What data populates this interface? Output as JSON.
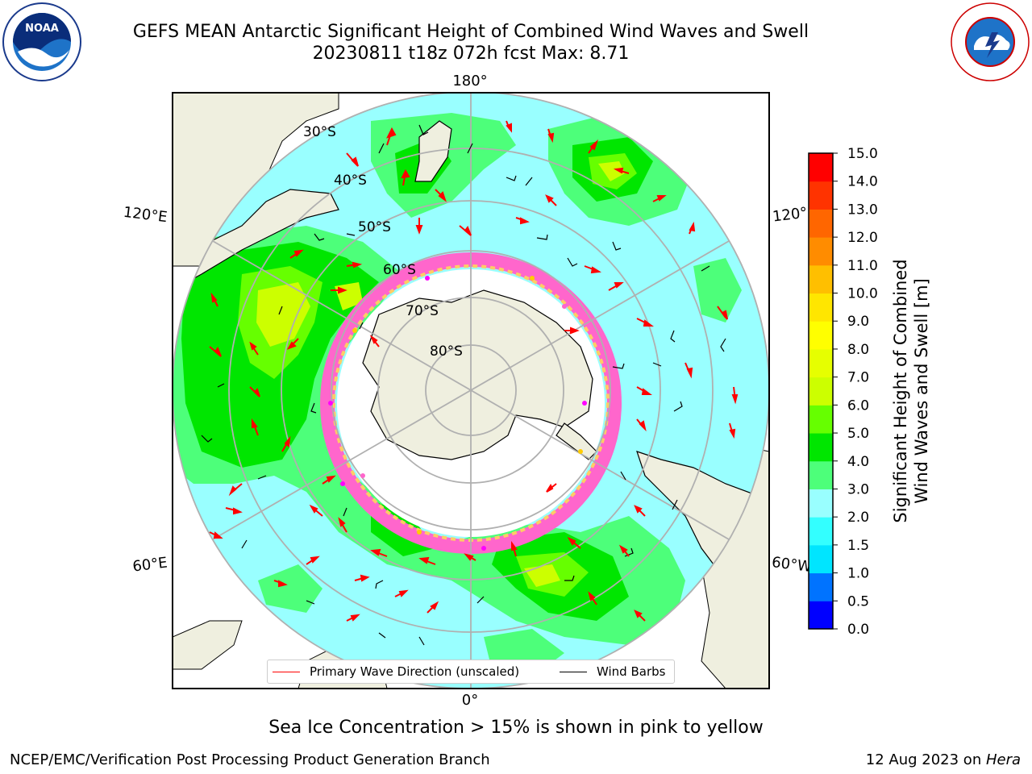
{
  "title": {
    "line1": "GEFS MEAN Antarctic Significant Height of Combined Wind Waves and Swell",
    "line2": "20230811 t18z 072h fcst   Max: 8.71"
  },
  "logos": {
    "left": "noaa-logo",
    "right": "nws-logo"
  },
  "map": {
    "projection": "south-polar-stereographic",
    "meridian_labels": [
      "180°",
      "120°E",
      "120°",
      "60°E",
      "60°W",
      "0°"
    ],
    "latitude_labels": [
      "30°S",
      "40°S",
      "50°S",
      "60°S",
      "70°S",
      "80°S"
    ],
    "colors": {
      "ocean_low": "#99ffff",
      "land": "#efefdf",
      "grid": "#b0b0b0"
    }
  },
  "legend": {
    "primary_wave": "Primary Wave Direction (unscaled)",
    "wind_barbs": "Wind Barbs",
    "primary_color": "#ff0000",
    "barb_color": "#000000"
  },
  "colorbar": {
    "label_line1": "Significant Height of Combined",
    "label_line2": "Wind Waves and Swell [m]",
    "ticks": [
      "0.0",
      "0.5",
      "1.0",
      "1.5",
      "2.0",
      "3.0",
      "4.0",
      "5.0",
      "6.0",
      "7.0",
      "8.0",
      "9.0",
      "10.0",
      "11.0",
      "12.0",
      "13.0",
      "14.0",
      "15.0"
    ],
    "colors": [
      "#0000ff",
      "#0073ff",
      "#00e5ff",
      "#33ffff",
      "#99ffff",
      "#4dff7a",
      "#00e600",
      "#66ff00",
      "#ccff00",
      "#e6ff00",
      "#ffff00",
      "#ffe600",
      "#ffbf00",
      "#ff8c00",
      "#ff6600",
      "#ff3300",
      "#ff0000"
    ]
  },
  "sea_ice_note": "Sea Ice Concentration > 15% is shown in pink to yellow",
  "footer": {
    "left": "NCEP/EMC/Verification Post Processing Product Generation Branch",
    "date": "12 Aug 2023 on ",
    "machine": "Hera"
  }
}
